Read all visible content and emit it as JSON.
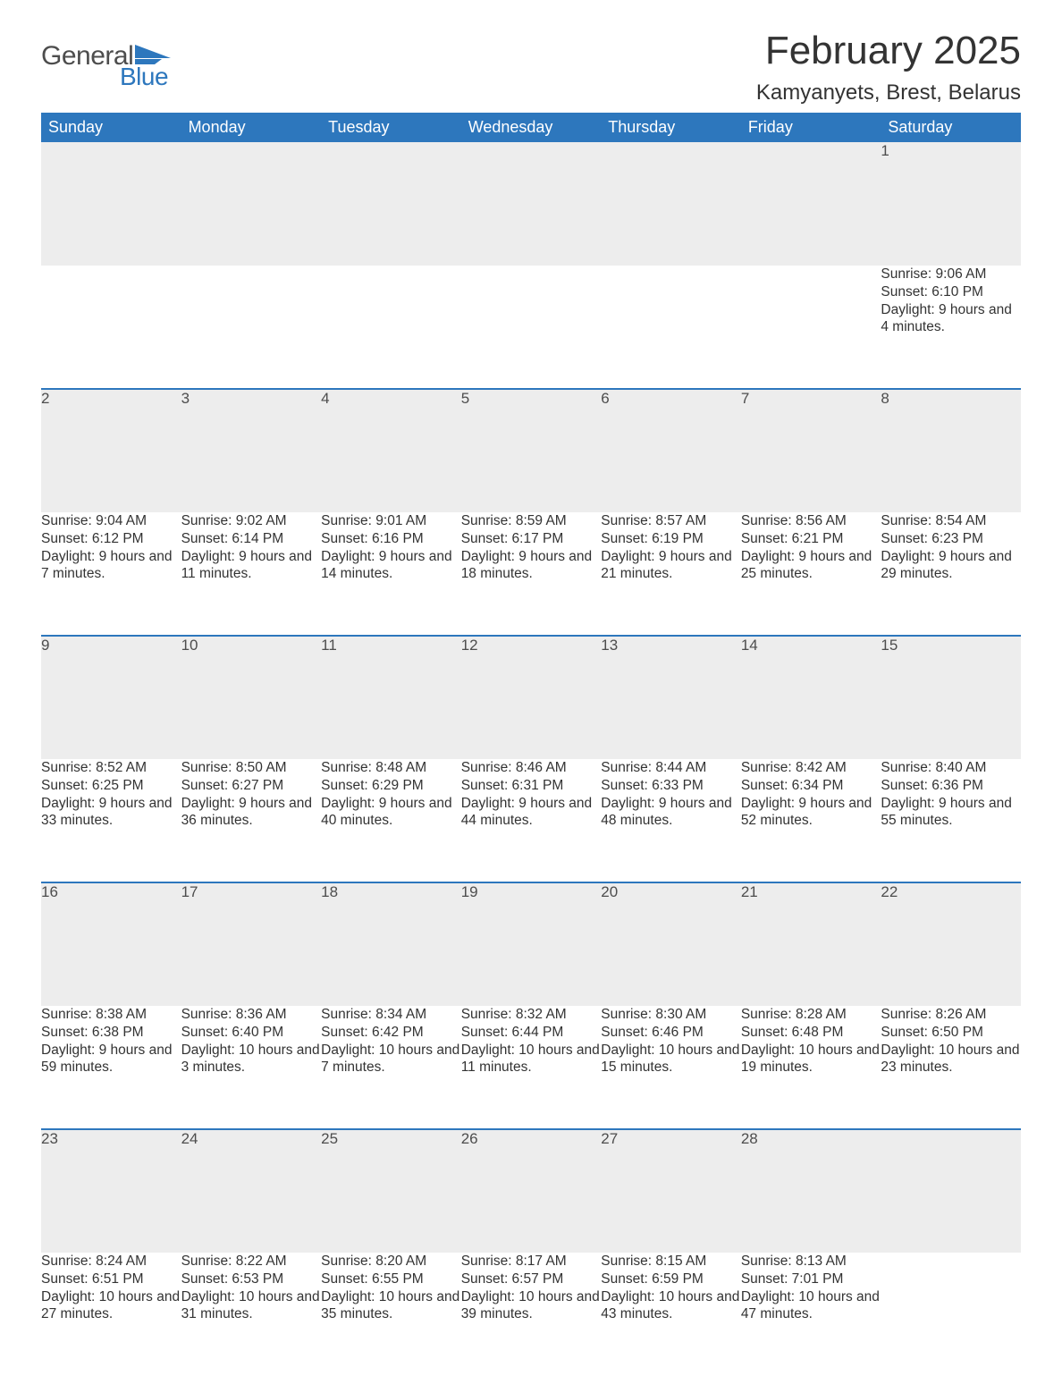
{
  "brand": {
    "word1": "General",
    "word2": "Blue"
  },
  "title": "February 2025",
  "location": "Kamyanyets, Brest, Belarus",
  "colors": {
    "header_bg": "#2d77bd",
    "header_text": "#ffffff",
    "daynum_bg": "#ededed",
    "divider": "#2d77bd",
    "body_text": "#333333",
    "brand_gray": "#4d4d4d",
    "brand_blue": "#2d77bd",
    "page_bg": "#ffffff"
  },
  "typography": {
    "title_fontsize_pt": 33,
    "location_fontsize_pt": 18,
    "header_fontsize_pt": 14,
    "body_fontsize_pt": 12
  },
  "layout": {
    "columns": 7,
    "rows": 5
  },
  "weekdays": [
    "Sunday",
    "Monday",
    "Tuesday",
    "Wednesday",
    "Thursday",
    "Friday",
    "Saturday"
  ],
  "weeks": [
    [
      null,
      null,
      null,
      null,
      null,
      null,
      {
        "d": "1",
        "sr": "Sunrise: 9:06 AM",
        "ss": "Sunset: 6:10 PM",
        "dl": "Daylight: 9 hours and 4 minutes."
      }
    ],
    [
      {
        "d": "2",
        "sr": "Sunrise: 9:04 AM",
        "ss": "Sunset: 6:12 PM",
        "dl": "Daylight: 9 hours and 7 minutes."
      },
      {
        "d": "3",
        "sr": "Sunrise: 9:02 AM",
        "ss": "Sunset: 6:14 PM",
        "dl": "Daylight: 9 hours and 11 minutes."
      },
      {
        "d": "4",
        "sr": "Sunrise: 9:01 AM",
        "ss": "Sunset: 6:16 PM",
        "dl": "Daylight: 9 hours and 14 minutes."
      },
      {
        "d": "5",
        "sr": "Sunrise: 8:59 AM",
        "ss": "Sunset: 6:17 PM",
        "dl": "Daylight: 9 hours and 18 minutes."
      },
      {
        "d": "6",
        "sr": "Sunrise: 8:57 AM",
        "ss": "Sunset: 6:19 PM",
        "dl": "Daylight: 9 hours and 21 minutes."
      },
      {
        "d": "7",
        "sr": "Sunrise: 8:56 AM",
        "ss": "Sunset: 6:21 PM",
        "dl": "Daylight: 9 hours and 25 minutes."
      },
      {
        "d": "8",
        "sr": "Sunrise: 8:54 AM",
        "ss": "Sunset: 6:23 PM",
        "dl": "Daylight: 9 hours and 29 minutes."
      }
    ],
    [
      {
        "d": "9",
        "sr": "Sunrise: 8:52 AM",
        "ss": "Sunset: 6:25 PM",
        "dl": "Daylight: 9 hours and 33 minutes."
      },
      {
        "d": "10",
        "sr": "Sunrise: 8:50 AM",
        "ss": "Sunset: 6:27 PM",
        "dl": "Daylight: 9 hours and 36 minutes."
      },
      {
        "d": "11",
        "sr": "Sunrise: 8:48 AM",
        "ss": "Sunset: 6:29 PM",
        "dl": "Daylight: 9 hours and 40 minutes."
      },
      {
        "d": "12",
        "sr": "Sunrise: 8:46 AM",
        "ss": "Sunset: 6:31 PM",
        "dl": "Daylight: 9 hours and 44 minutes."
      },
      {
        "d": "13",
        "sr": "Sunrise: 8:44 AM",
        "ss": "Sunset: 6:33 PM",
        "dl": "Daylight: 9 hours and 48 minutes."
      },
      {
        "d": "14",
        "sr": "Sunrise: 8:42 AM",
        "ss": "Sunset: 6:34 PM",
        "dl": "Daylight: 9 hours and 52 minutes."
      },
      {
        "d": "15",
        "sr": "Sunrise: 8:40 AM",
        "ss": "Sunset: 6:36 PM",
        "dl": "Daylight: 9 hours and 55 minutes."
      }
    ],
    [
      {
        "d": "16",
        "sr": "Sunrise: 8:38 AM",
        "ss": "Sunset: 6:38 PM",
        "dl": "Daylight: 9 hours and 59 minutes."
      },
      {
        "d": "17",
        "sr": "Sunrise: 8:36 AM",
        "ss": "Sunset: 6:40 PM",
        "dl": "Daylight: 10 hours and 3 minutes."
      },
      {
        "d": "18",
        "sr": "Sunrise: 8:34 AM",
        "ss": "Sunset: 6:42 PM",
        "dl": "Daylight: 10 hours and 7 minutes."
      },
      {
        "d": "19",
        "sr": "Sunrise: 8:32 AM",
        "ss": "Sunset: 6:44 PM",
        "dl": "Daylight: 10 hours and 11 minutes."
      },
      {
        "d": "20",
        "sr": "Sunrise: 8:30 AM",
        "ss": "Sunset: 6:46 PM",
        "dl": "Daylight: 10 hours and 15 minutes."
      },
      {
        "d": "21",
        "sr": "Sunrise: 8:28 AM",
        "ss": "Sunset: 6:48 PM",
        "dl": "Daylight: 10 hours and 19 minutes."
      },
      {
        "d": "22",
        "sr": "Sunrise: 8:26 AM",
        "ss": "Sunset: 6:50 PM",
        "dl": "Daylight: 10 hours and 23 minutes."
      }
    ],
    [
      {
        "d": "23",
        "sr": "Sunrise: 8:24 AM",
        "ss": "Sunset: 6:51 PM",
        "dl": "Daylight: 10 hours and 27 minutes."
      },
      {
        "d": "24",
        "sr": "Sunrise: 8:22 AM",
        "ss": "Sunset: 6:53 PM",
        "dl": "Daylight: 10 hours and 31 minutes."
      },
      {
        "d": "25",
        "sr": "Sunrise: 8:20 AM",
        "ss": "Sunset: 6:55 PM",
        "dl": "Daylight: 10 hours and 35 minutes."
      },
      {
        "d": "26",
        "sr": "Sunrise: 8:17 AM",
        "ss": "Sunset: 6:57 PM",
        "dl": "Daylight: 10 hours and 39 minutes."
      },
      {
        "d": "27",
        "sr": "Sunrise: 8:15 AM",
        "ss": "Sunset: 6:59 PM",
        "dl": "Daylight: 10 hours and 43 minutes."
      },
      {
        "d": "28",
        "sr": "Sunrise: 8:13 AM",
        "ss": "Sunset: 7:01 PM",
        "dl": "Daylight: 10 hours and 47 minutes."
      },
      null
    ]
  ]
}
